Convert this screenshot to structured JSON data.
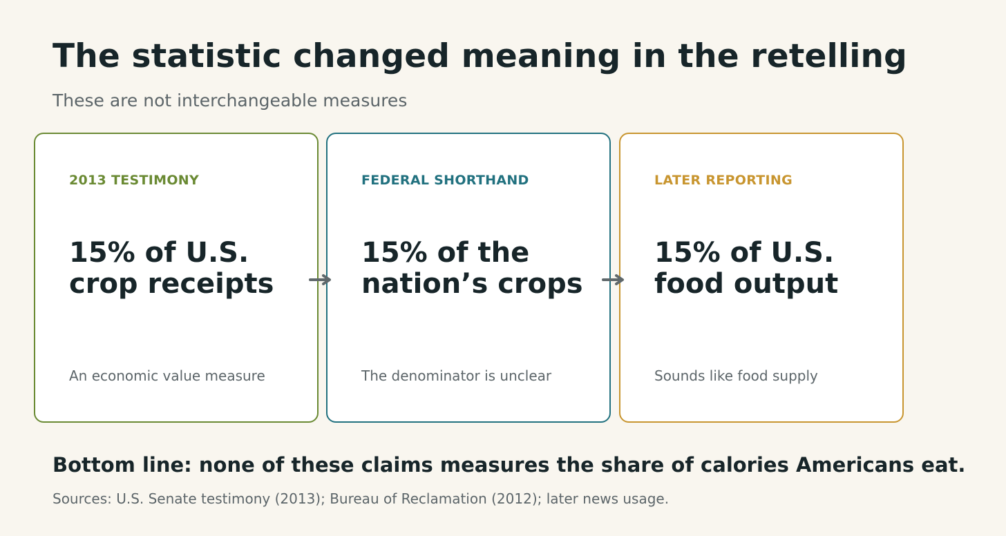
{
  "title": "The statistic changed meaning in the retelling",
  "subtitle": "These are not interchangeable measures",
  "colors": {
    "background": "#f9f6ef",
    "text": "#172529",
    "muted": "#5c6569",
    "green": "#6a8a33",
    "teal": "#21717f",
    "gold": "#c8952f",
    "arrow": "#5f686b"
  },
  "cards": [
    {
      "label": "2013 TESTIMONY",
      "claim": "15% of U.S. crop receipts",
      "note": "An economic value measure",
      "color": "#6a8a33"
    },
    {
      "label": "FEDERAL SHORTHAND",
      "claim": "15% of the nation’s crops",
      "note": "The denominator is unclear",
      "color": "#21717f"
    },
    {
      "label": "LATER REPORTING",
      "claim": "15% of U.S. food output",
      "note": "Sounds like food supply",
      "color": "#c8952f"
    }
  ],
  "arrows": [
    "arrow-right-icon",
    "arrow-right-icon"
  ],
  "bottom_line": "Bottom line: none of these claims measures the share of calories Americans eat.",
  "sources": "Sources: U.S. Senate testimony (2013); Bureau of Reclamation (2012); later news usage."
}
